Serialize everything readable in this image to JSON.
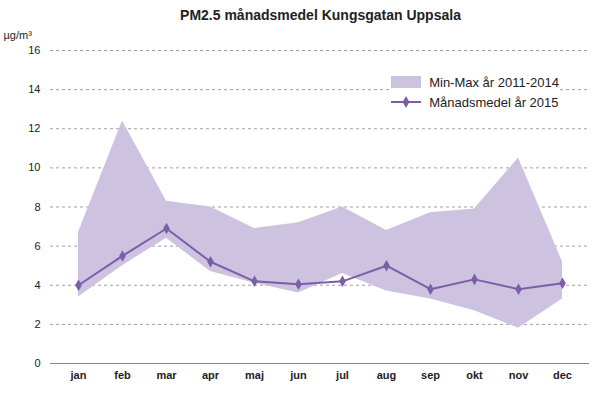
{
  "chart_data": {
    "type": "line",
    "title": "PM2.5 månadsmedel Kungsgatan Uppsala",
    "y_label": "µg/m³",
    "categories": [
      "jan",
      "feb",
      "mar",
      "apr",
      "maj",
      "jun",
      "jul",
      "aug",
      "sep",
      "okt",
      "nov",
      "dec"
    ],
    "series": [
      {
        "name": "Min-Max år 2011-2014",
        "type": "area",
        "color": "#cdc2df",
        "min": [
          3.4,
          5.0,
          6.4,
          4.7,
          4.1,
          3.6,
          4.6,
          3.7,
          3.3,
          2.7,
          1.8,
          3.3
        ],
        "max": [
          6.7,
          12.4,
          8.3,
          8.0,
          6.9,
          7.2,
          8.0,
          6.8,
          7.7,
          7.9,
          10.5,
          5.2
        ]
      },
      {
        "name": "Månadsmedel år 2015",
        "type": "line",
        "color": "#7b5ea7",
        "marker": "diamond",
        "values": [
          4.0,
          5.5,
          6.9,
          5.2,
          4.2,
          4.05,
          4.2,
          5.0,
          3.8,
          4.3,
          3.8,
          4.1
        ]
      }
    ],
    "ylim": [
      0,
      16
    ],
    "yticks": [
      0,
      2,
      4,
      6,
      8,
      10,
      12,
      14,
      16
    ],
    "grid": true,
    "legend": "upper right"
  }
}
